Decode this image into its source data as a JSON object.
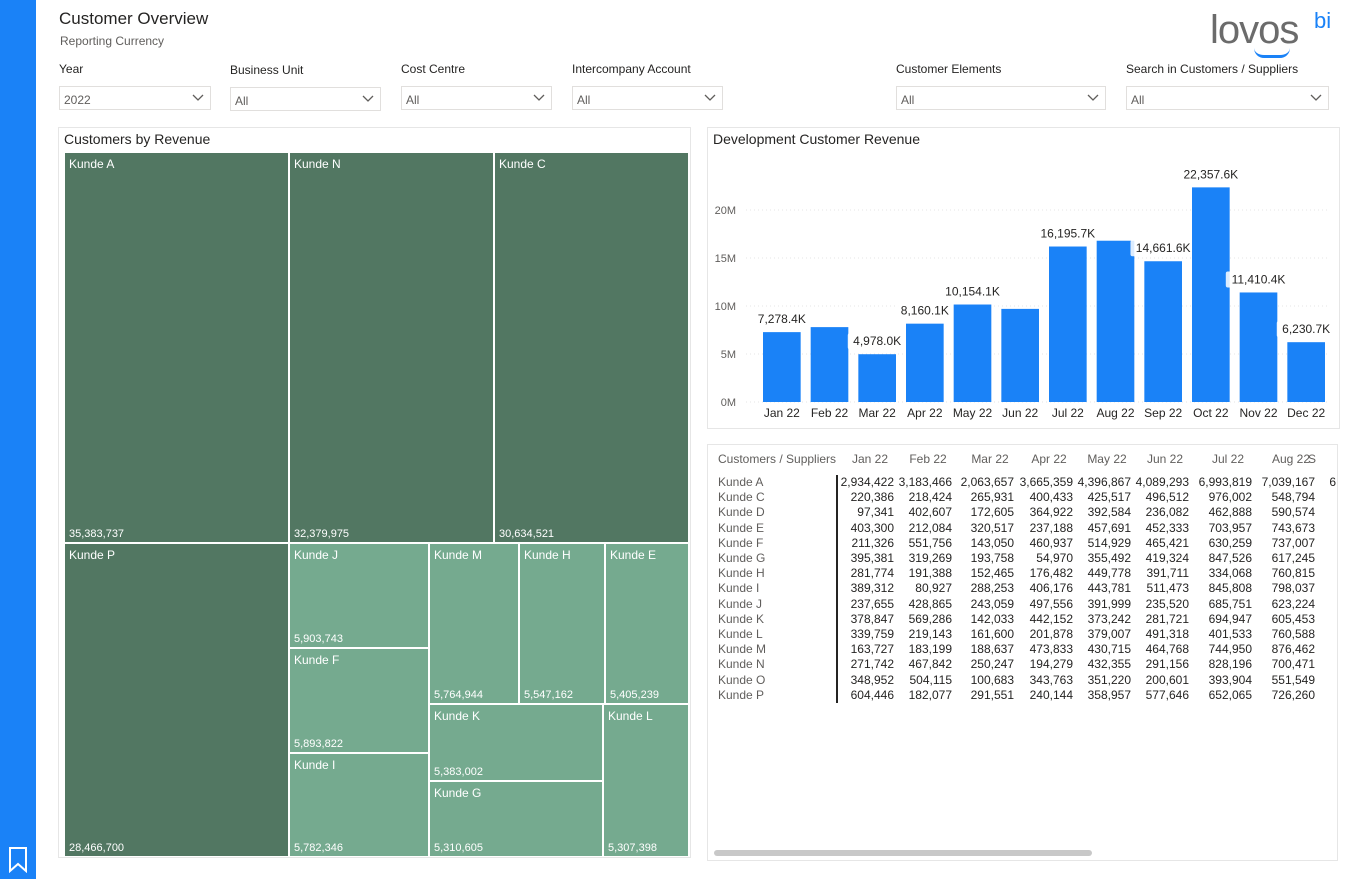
{
  "header": {
    "title": "Customer Overview",
    "subtitle": "Reporting Currency",
    "logo_text": "lovos",
    "logo_suffix": "bi"
  },
  "filters": [
    {
      "label": "Year",
      "value": "2022"
    },
    {
      "label": "Business Unit",
      "value": "All"
    },
    {
      "label": "Cost Centre",
      "value": "All"
    },
    {
      "label": "Intercompany Account",
      "value": "All"
    },
    {
      "label": "Customer Elements",
      "value": "All"
    },
    {
      "label": "Search in Customers / Suppliers",
      "value": "All"
    }
  ],
  "treemap": {
    "title": "Customers by Revenue",
    "tiles": [
      {
        "name": "Kunde A",
        "value": "35,383,737"
      },
      {
        "name": "Kunde N",
        "value": "32,379,975"
      },
      {
        "name": "Kunde C",
        "value": "30,634,521"
      },
      {
        "name": "Kunde P",
        "value": "28,466,700"
      },
      {
        "name": "Kunde J",
        "value": "5,903,743"
      },
      {
        "name": "Kunde F",
        "value": "5,893,822"
      },
      {
        "name": "Kunde I",
        "value": "5,782,346"
      },
      {
        "name": "Kunde M",
        "value": "5,764,944"
      },
      {
        "name": "Kunde H",
        "value": "5,547,162"
      },
      {
        "name": "Kunde E",
        "value": "5,405,239"
      },
      {
        "name": "Kunde K",
        "value": "5,383,002"
      },
      {
        "name": "Kunde G",
        "value": "5,310,605"
      },
      {
        "name": "Kunde L",
        "value": "5,307,398"
      }
    ]
  },
  "chart_data": {
    "type": "bar",
    "title": "Development Customer Revenue",
    "categories": [
      "Jan 22",
      "Feb 22",
      "Mar 22",
      "Apr 22",
      "May 22",
      "Jun 22",
      "Jul 22",
      "Aug 22",
      "Sep 22",
      "Oct 22",
      "Nov 22",
      "Dec 22"
    ],
    "values": [
      7278.4,
      7800,
      4978.0,
      8160.1,
      10154.1,
      9700,
      16195.7,
      16800,
      14661.6,
      22357.6,
      11410.4,
      6230.7
    ],
    "data_labels": [
      "7,278.4K",
      "",
      "4,978.0K",
      "8,160.1K",
      "10,154.1K",
      "",
      "16,195.7K",
      "",
      "14,661.6K",
      "22,357.6K",
      "11,410.4K",
      "6,230.7K"
    ],
    "y_ticks": [
      "0M",
      "5M",
      "10M",
      "15M",
      "20M"
    ],
    "ylim": [
      0,
      22500
    ],
    "bar_color": "#1a82f7",
    "grid": true
  },
  "matrix": {
    "header": "Customers / Suppliers",
    "columns": [
      "Jan 22",
      "Feb 22",
      "Mar 22",
      "Apr 22",
      "May 22",
      "Jun 22",
      "Jul 22",
      "Aug 22",
      "S"
    ],
    "rows": [
      {
        "name": "Kunde A",
        "values": [
          "2,934,422",
          "3,183,466",
          "2,063,657",
          "3,665,359",
          "4,396,867",
          "4,089,293",
          "6,993,819",
          "7,039,167",
          "6"
        ]
      },
      {
        "name": "Kunde C",
        "values": [
          "220,386",
          "218,424",
          "265,931",
          "400,433",
          "425,517",
          "496,512",
          "976,002",
          "548,794",
          ""
        ]
      },
      {
        "name": "Kunde D",
        "values": [
          "97,341",
          "402,607",
          "172,605",
          "364,922",
          "392,584",
          "236,082",
          "462,888",
          "590,574",
          ""
        ]
      },
      {
        "name": "Kunde E",
        "values": [
          "403,300",
          "212,084",
          "320,517",
          "237,188",
          "457,691",
          "452,333",
          "703,957",
          "743,673",
          ""
        ]
      },
      {
        "name": "Kunde F",
        "values": [
          "211,326",
          "551,756",
          "143,050",
          "460,937",
          "514,929",
          "465,421",
          "630,259",
          "737,007",
          ""
        ]
      },
      {
        "name": "Kunde G",
        "values": [
          "395,381",
          "319,269",
          "193,758",
          "54,970",
          "355,492",
          "419,324",
          "847,526",
          "617,245",
          ""
        ]
      },
      {
        "name": "Kunde H",
        "values": [
          "281,774",
          "191,388",
          "152,465",
          "176,482",
          "449,778",
          "391,711",
          "334,068",
          "760,815",
          ""
        ]
      },
      {
        "name": "Kunde I",
        "values": [
          "389,312",
          "80,927",
          "288,253",
          "406,176",
          "443,781",
          "511,473",
          "845,808",
          "798,037",
          ""
        ]
      },
      {
        "name": "Kunde J",
        "values": [
          "237,655",
          "428,865",
          "243,059",
          "497,556",
          "391,999",
          "235,520",
          "685,751",
          "623,224",
          ""
        ]
      },
      {
        "name": "Kunde K",
        "values": [
          "378,847",
          "569,286",
          "142,033",
          "442,152",
          "373,242",
          "281,721",
          "694,947",
          "605,453",
          ""
        ]
      },
      {
        "name": "Kunde L",
        "values": [
          "339,759",
          "219,143",
          "161,600",
          "201,878",
          "379,007",
          "491,318",
          "401,533",
          "760,588",
          ""
        ]
      },
      {
        "name": "Kunde M",
        "values": [
          "163,727",
          "183,199",
          "188,637",
          "473,833",
          "430,715",
          "464,768",
          "744,950",
          "876,462",
          ""
        ]
      },
      {
        "name": "Kunde N",
        "values": [
          "271,742",
          "467,842",
          "250,247",
          "194,279",
          "432,355",
          "291,156",
          "828,196",
          "700,471",
          ""
        ]
      },
      {
        "name": "Kunde O",
        "values": [
          "348,952",
          "504,115",
          "100,683",
          "343,763",
          "351,220",
          "200,601",
          "393,904",
          "551,549",
          ""
        ]
      },
      {
        "name": "Kunde P",
        "values": [
          "604,446",
          "182,077",
          "291,551",
          "240,144",
          "358,957",
          "577,646",
          "652,065",
          "726,260",
          ""
        ]
      }
    ]
  }
}
